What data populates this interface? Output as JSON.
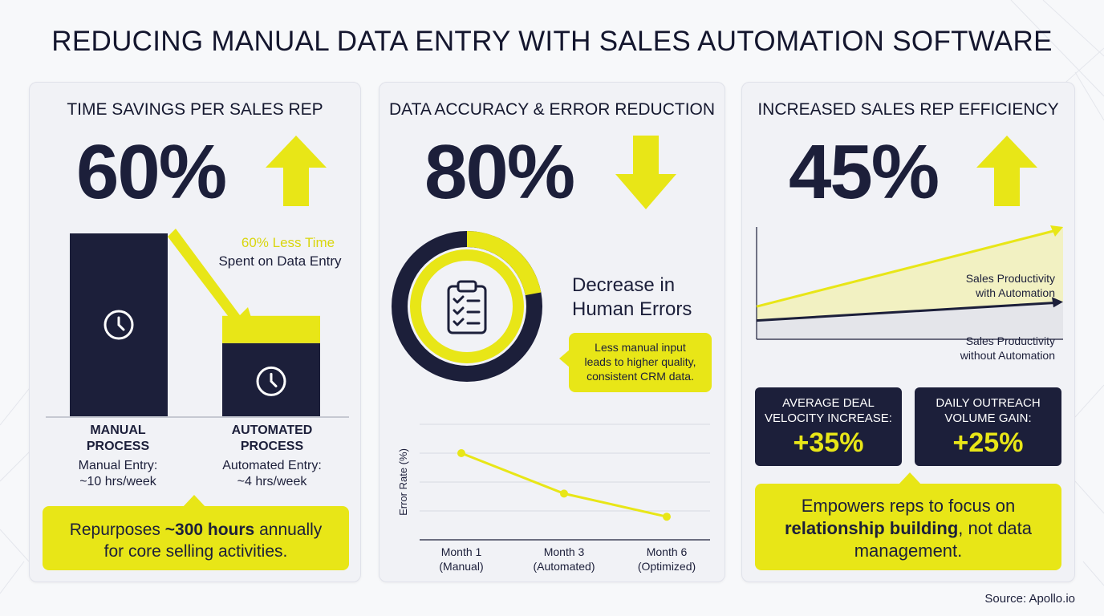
{
  "title": "REDUCING MANUAL DATA ENTRY WITH SALES AUTOMATION SOFTWARE",
  "source": "Source: Apollo.io",
  "colors": {
    "navy": "#1c1f3a",
    "yellow": "#e8e617"
  },
  "panel_time": {
    "title": "TIME SAVINGS PER SALES REP",
    "big_value": "60%",
    "trend_icon": "arrow-up-icon",
    "annotation_line1": "60% Less Time",
    "annotation_line2": "Spent on Data Entry",
    "bars": [
      {
        "label_line1": "MANUAL",
        "label_line2": "PROCESS",
        "detail_line1": "Manual Entry:",
        "detail_line2": "~10 hrs/week",
        "icon": "clock-icon"
      },
      {
        "label_line1": "AUTOMATED",
        "label_line2": "PROCESS",
        "detail_line1": "Automated Entry:",
        "detail_line2": "~4 hrs/week",
        "icon": "clock-icon"
      }
    ],
    "callout_prefix": "Repurposes ",
    "callout_bold": "~300 hours",
    "callout_suffix": " annually",
    "callout_line2": "for core selling activities."
  },
  "panel_accuracy": {
    "title": "DATA ACCURACY & ERROR REDUCTION",
    "big_value": "80%",
    "trend_icon": "arrow-down-icon",
    "donut_label_line1": "Decrease in",
    "donut_label_line2": "Human Errors",
    "donut_icon": "clipboard-checklist-icon",
    "donut_reduction": 0.8,
    "note_line1": "Less manual input",
    "note_line2": "leads to higher quality,",
    "note_line3": "consistent CRM data."
  },
  "panel_efficiency": {
    "title": "INCREASED SALES REP EFFICIENCY",
    "big_value": "45%",
    "trend_icon": "arrow-up-icon",
    "line_with_l1": "Sales Productivity",
    "line_with_l2": "with Automation",
    "line_without_l1": "Sales Productivity",
    "line_without_l2": "without Automation",
    "card1_l1": "AVERAGE DEAL",
    "card1_l2": "VELOCITY INCREASE:",
    "card1_value": "+35%",
    "card2_l1": "DAILY OUTREACH",
    "card2_l2": "VOLUME GAIN:",
    "card2_value": "+25%",
    "callout_line1": "Empowers reps to focus on",
    "callout_bold": "relationship building",
    "callout_after_bold": ", not data",
    "callout_line3": "management."
  },
  "chart_data": [
    {
      "type": "bar",
      "categories": [
        "MANUAL PROCESS",
        "AUTOMATED PROCESS"
      ],
      "values": [
        10,
        4
      ],
      "units": "hrs/week",
      "annotation": "60% Less Time Spent on Data Entry"
    },
    {
      "type": "line",
      "ylabel": "Error Rate (%)",
      "categories": [
        "Month 1 (Manual)",
        "Month 3 (Automated)",
        "Month 6 (Optimized)"
      ],
      "categories_l1": [
        "Month 1",
        "Month 3",
        "Month 6"
      ],
      "categories_l2": [
        "(Manual)",
        "(Automated)",
        "(Optimized)"
      ],
      "values": [
        75,
        40,
        20
      ],
      "ylim": [
        0,
        100
      ],
      "grid": true
    },
    {
      "type": "line",
      "series": [
        {
          "name": "Sales Productivity with Automation",
          "x": [
            0,
            1
          ],
          "values": [
            15,
            100
          ]
        },
        {
          "name": "Sales Productivity without Automation",
          "x": [
            0,
            1
          ],
          "values": [
            0,
            20
          ]
        }
      ],
      "ylim": [
        -20,
        100
      ]
    }
  ]
}
